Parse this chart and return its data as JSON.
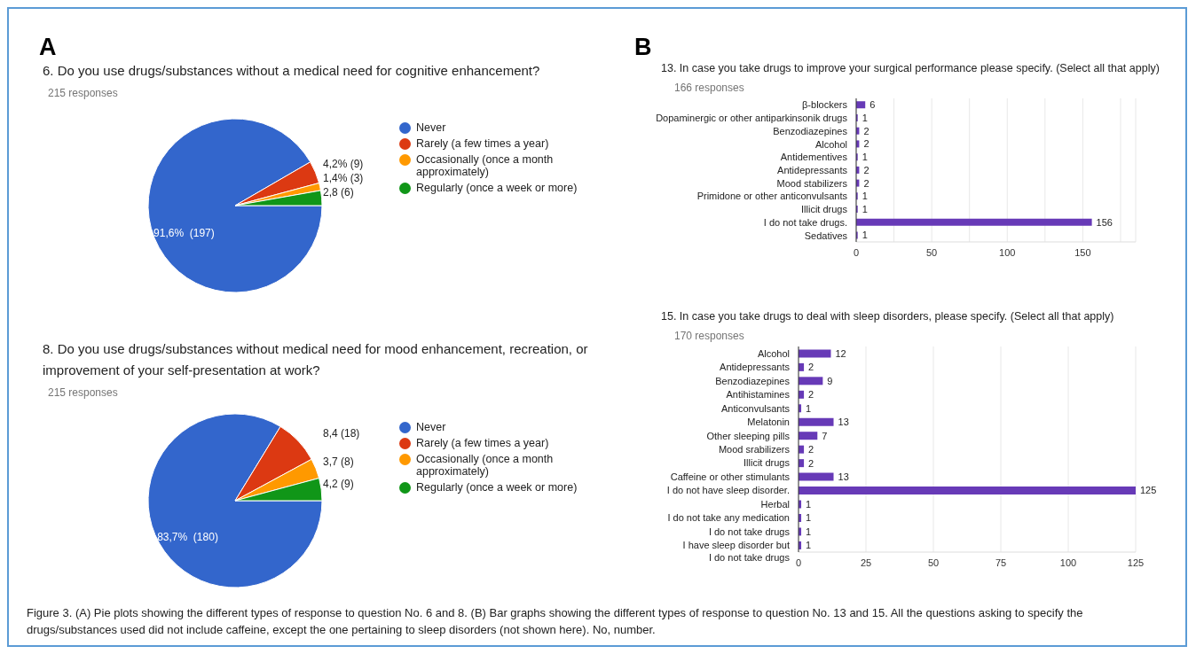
{
  "chart_data": [
    {
      "type": "pie",
      "title": "6. Do you use drugs/substances without a medical need for cognitive enhancement?",
      "subtitle": "215 responses",
      "annotations": [
        "A"
      ],
      "categories": [
        "Never",
        "Rarely (a few times a year)",
        "Occasionally (once a month approximately)",
        "Regularly (once a week or more)"
      ],
      "values": [
        197,
        9,
        3,
        6
      ],
      "value_labels": [
        "91,6%  (197)",
        "4,2% (9)",
        "1,4% (3)",
        "2,8 (6)"
      ],
      "colors": [
        "#3366cc",
        "#dc3912",
        "#ff9900",
        "#109618"
      ],
      "legend": "right"
    },
    {
      "type": "pie",
      "title": "8. Do you use drugs/substances without medical need for mood enhancement, recreation, or improvement of your self-presentation at work?",
      "subtitle": "215 responses",
      "categories": [
        "Never",
        "Rarely (a few times a year)",
        "Occasionally (once a month approximately)",
        "Regularly (once a week or more)"
      ],
      "values": [
        180,
        18,
        8,
        9
      ],
      "value_labels": [
        "83,7%  (180)",
        "8,4 (18)",
        "3,7 (8)",
        "4,2 (9)"
      ],
      "colors": [
        "#3366cc",
        "#dc3912",
        "#ff9900",
        "#109618"
      ],
      "legend": "right"
    },
    {
      "type": "bar",
      "orientation": "horizontal",
      "title": "13. In case you take drugs to improve your surgical performance please specify. (Select all that apply)",
      "subtitle": "166 responses",
      "annotations": [
        "B"
      ],
      "categories": [
        "β-blockers",
        "Dopaminergic or other antiparkinsonik drugs",
        "Benzodiazepines",
        "Alcohol",
        "Antidementives",
        "Antidepressants",
        "Mood stabilizers",
        "Primidone or other anticonvulsants",
        "Illicit drugs",
        "I do not take drugs.",
        "Sedatives"
      ],
      "values": [
        6,
        1,
        2,
        2,
        1,
        2,
        2,
        1,
        1,
        156,
        1
      ],
      "color": "#673ab7",
      "data_labels": true,
      "grid": "x",
      "xlim": [
        0,
        185
      ],
      "xticks": [
        0,
        {
          "value": 25,
          "label": null
        },
        50,
        {
          "value": 75,
          "label": null
        },
        100,
        {
          "value": 125,
          "label": null
        },
        150,
        {
          "value": 175,
          "label": null
        }
      ]
    },
    {
      "type": "bar",
      "orientation": "horizontal",
      "title": "15. In case you take drugs to deal with sleep disorders, please specify. (Select all that apply)",
      "subtitle": "170 responses",
      "annotations": [
        "Figure 3.  (A) Pie plots showing the different types of response to question No. 6 and 8. (B) Bar graphs showing the different types of response to question No. 13 and 15. All the questions asking to specify the drugs/substances used did not include caffeine, except the one pertaining to sleep disorders (not shown here). No, number."
      ],
      "categories": [
        "Alcohol",
        "Antidepressants",
        "Benzodiazepines",
        "Antihistamines",
        "Anticonvulsants",
        "Melatonin",
        "Other sleeping pills",
        "Mood srabilizers",
        "Illicit drugs",
        "Caffeine or other stimulants",
        "I do not have sleep disorder.",
        "Herbal",
        "I do not take any medication",
        "I do not take drugs",
        "I have sleep disorder but\nI do not take drugs"
      ],
      "values": [
        12,
        2,
        9,
        2,
        1,
        13,
        7,
        2,
        2,
        13,
        125,
        1,
        1,
        1,
        1
      ],
      "color": "#673ab7",
      "data_labels": true,
      "grid": "x",
      "xlim": [
        0,
        125
      ],
      "xticks": [
        0,
        25,
        50,
        75,
        100,
        125
      ]
    }
  ]
}
